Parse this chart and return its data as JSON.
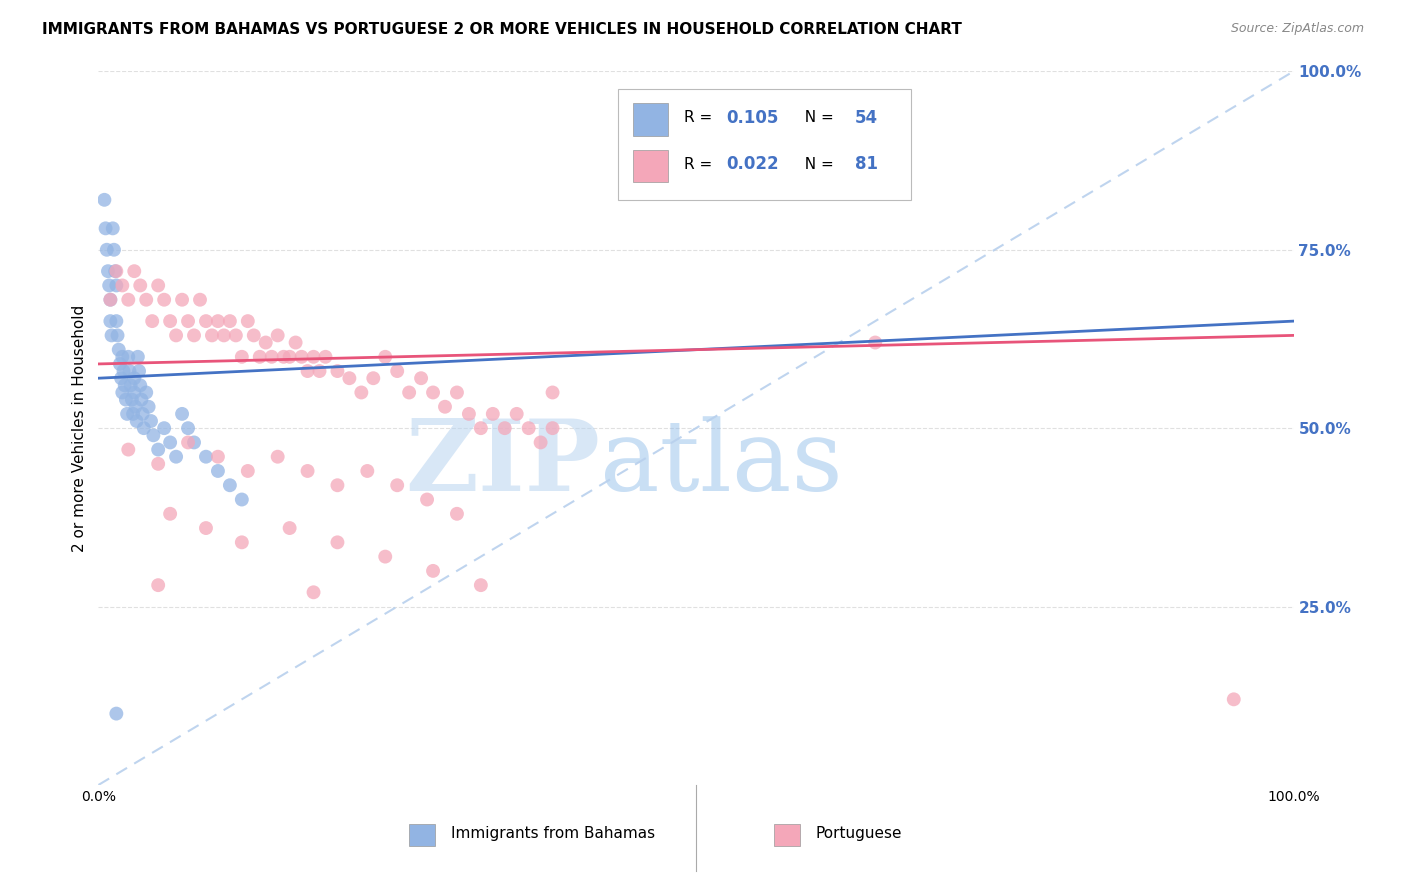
{
  "title": "IMMIGRANTS FROM BAHAMAS VS PORTUGUESE 2 OR MORE VEHICLES IN HOUSEHOLD CORRELATION CHART",
  "source": "Source: ZipAtlas.com",
  "ylabel": "2 or more Vehicles in Household",
  "xlim": [
    0.0,
    1.0
  ],
  "ylim": [
    0.0,
    1.0
  ],
  "ytick_positions": [
    0.0,
    0.25,
    0.5,
    0.75,
    1.0
  ],
  "xtick_positions": [
    0.0,
    0.2,
    0.4,
    0.6,
    0.8,
    1.0
  ],
  "legend_R1": "0.105",
  "legend_N1": "54",
  "legend_R2": "0.022",
  "legend_N2": "81",
  "color_bahamas": "#92b4e3",
  "color_portuguese": "#f4a7b9",
  "scatter_alpha": 0.75,
  "marker_size": 100,
  "watermark_zip": "ZIP",
  "watermark_atlas": "atlas",
  "diag_line_color": "#b8d0ed",
  "trend_blue_color": "#4472c4",
  "trend_pink_color": "#e8547a",
  "grid_color": "#dddddd",
  "right_axis_color": "#4472c4",
  "background_color": "#ffffff",
  "bahamas_x": [
    0.005,
    0.006,
    0.007,
    0.008,
    0.009,
    0.01,
    0.01,
    0.011,
    0.012,
    0.013,
    0.014,
    0.015,
    0.015,
    0.016,
    0.017,
    0.018,
    0.019,
    0.02,
    0.02,
    0.021,
    0.022,
    0.023,
    0.024,
    0.025,
    0.026,
    0.027,
    0.028,
    0.029,
    0.03,
    0.03,
    0.031,
    0.032,
    0.033,
    0.034,
    0.035,
    0.036,
    0.037,
    0.038,
    0.04,
    0.042,
    0.044,
    0.046,
    0.05,
    0.055,
    0.06,
    0.065,
    0.07,
    0.075,
    0.08,
    0.09,
    0.1,
    0.11,
    0.12,
    0.015
  ],
  "bahamas_y": [
    0.82,
    0.78,
    0.75,
    0.72,
    0.7,
    0.68,
    0.65,
    0.63,
    0.78,
    0.75,
    0.72,
    0.7,
    0.65,
    0.63,
    0.61,
    0.59,
    0.57,
    0.55,
    0.6,
    0.58,
    0.56,
    0.54,
    0.52,
    0.6,
    0.58,
    0.56,
    0.54,
    0.52,
    0.57,
    0.55,
    0.53,
    0.51,
    0.6,
    0.58,
    0.56,
    0.54,
    0.52,
    0.5,
    0.55,
    0.53,
    0.51,
    0.49,
    0.47,
    0.5,
    0.48,
    0.46,
    0.52,
    0.5,
    0.48,
    0.46,
    0.44,
    0.42,
    0.4,
    0.1
  ],
  "portuguese_x": [
    0.01,
    0.015,
    0.02,
    0.025,
    0.03,
    0.035,
    0.04,
    0.045,
    0.05,
    0.055,
    0.06,
    0.065,
    0.07,
    0.075,
    0.08,
    0.085,
    0.09,
    0.095,
    0.1,
    0.105,
    0.11,
    0.115,
    0.12,
    0.125,
    0.13,
    0.135,
    0.14,
    0.145,
    0.15,
    0.155,
    0.16,
    0.165,
    0.17,
    0.175,
    0.18,
    0.185,
    0.19,
    0.2,
    0.21,
    0.22,
    0.23,
    0.24,
    0.25,
    0.26,
    0.27,
    0.28,
    0.29,
    0.3,
    0.31,
    0.32,
    0.33,
    0.34,
    0.35,
    0.36,
    0.37,
    0.38,
    0.025,
    0.05,
    0.075,
    0.1,
    0.125,
    0.15,
    0.175,
    0.2,
    0.225,
    0.25,
    0.275,
    0.3,
    0.38,
    0.06,
    0.09,
    0.12,
    0.16,
    0.2,
    0.24,
    0.28,
    0.32,
    0.05,
    0.18,
    0.65,
    0.95
  ],
  "portuguese_y": [
    0.68,
    0.72,
    0.7,
    0.68,
    0.72,
    0.7,
    0.68,
    0.65,
    0.7,
    0.68,
    0.65,
    0.63,
    0.68,
    0.65,
    0.63,
    0.68,
    0.65,
    0.63,
    0.65,
    0.63,
    0.65,
    0.63,
    0.6,
    0.65,
    0.63,
    0.6,
    0.62,
    0.6,
    0.63,
    0.6,
    0.6,
    0.62,
    0.6,
    0.58,
    0.6,
    0.58,
    0.6,
    0.58,
    0.57,
    0.55,
    0.57,
    0.6,
    0.58,
    0.55,
    0.57,
    0.55,
    0.53,
    0.55,
    0.52,
    0.5,
    0.52,
    0.5,
    0.52,
    0.5,
    0.48,
    0.5,
    0.47,
    0.45,
    0.48,
    0.46,
    0.44,
    0.46,
    0.44,
    0.42,
    0.44,
    0.42,
    0.4,
    0.38,
    0.55,
    0.38,
    0.36,
    0.34,
    0.36,
    0.34,
    0.32,
    0.3,
    0.28,
    0.28,
    0.27,
    0.62,
    0.12
  ]
}
